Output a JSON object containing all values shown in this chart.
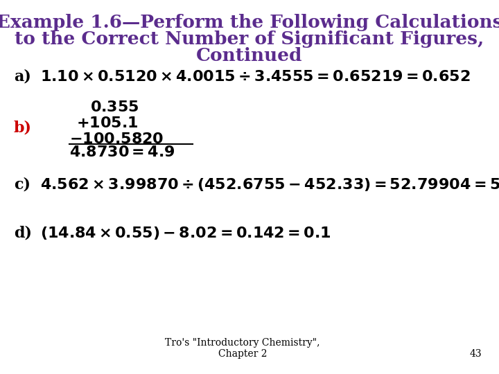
{
  "title_line1": "Example 1.6—Perform the Following Calculations",
  "title_line2": "to the Correct Number of Significant Figures,",
  "title_line3": "Continued",
  "title_color": "#5B2C8D",
  "bg_color": "#FFFFFF",
  "label_color_a": "#000000",
  "label_color_b": "#CC0000",
  "label_color_cd": "#000000",
  "text_color": "#000000",
  "footer_text": "Tro's \"Introductory Chemistry\",\nChapter 2",
  "footer_page": "43",
  "font_size_title": 19,
  "font_size_body": 16,
  "font_size_footer": 10
}
